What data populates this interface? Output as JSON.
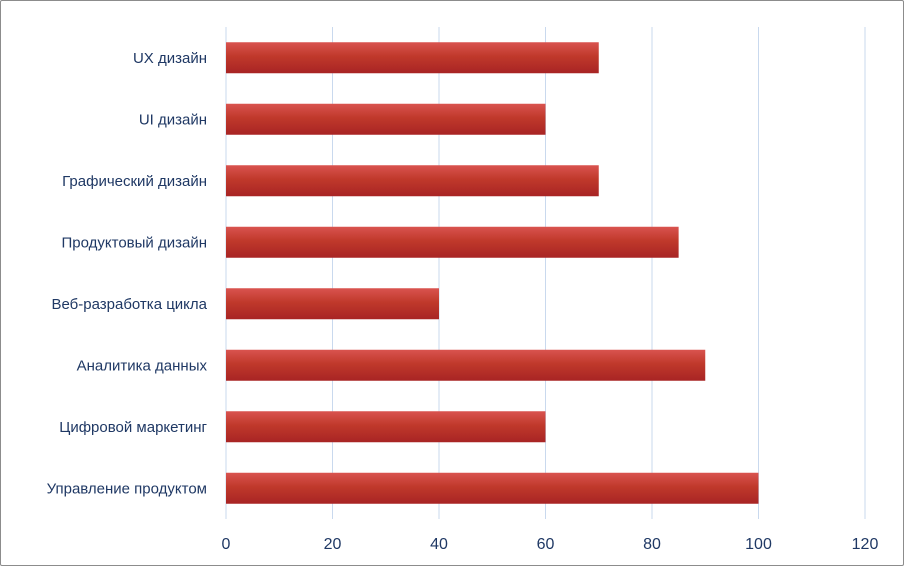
{
  "chart_data": {
    "type": "bar",
    "orientation": "horizontal",
    "categories": [
      "UX дизайн",
      "UI дизайн",
      "Графический дизайн",
      "Продуктовый дизайн",
      "Веб-разработка цикла",
      "Аналитика данных",
      "Цифровой маркетинг",
      "Управление продуктом"
    ],
    "values": [
      70,
      60,
      70,
      85,
      40,
      90,
      60,
      100
    ],
    "xlim": [
      0,
      120
    ],
    "x_ticks": [
      0,
      20,
      40,
      60,
      80,
      100,
      120
    ],
    "grid": "vertical",
    "bar_color": "#c0392b",
    "bar_color_light": "#d9534f",
    "bar_color_dark": "#a82424",
    "grid_color": "#c9d9ee",
    "text_color": "#1f3864"
  }
}
